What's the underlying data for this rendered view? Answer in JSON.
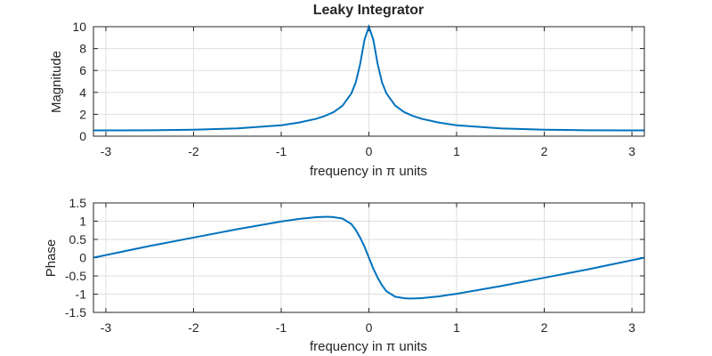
{
  "chart_data": [
    {
      "type": "line",
      "title": "Leaky Integrator",
      "xlabel": "frequency in π units",
      "ylabel": "Magnitude",
      "xlim": [
        -3.1416,
        3.1416
      ],
      "ylim": [
        0,
        10
      ],
      "xticks": [
        -3,
        -2,
        -1,
        0,
        1,
        2,
        3
      ],
      "yticks": [
        0,
        2,
        4,
        6,
        8,
        10
      ],
      "grid": true,
      "series": [
        {
          "name": "",
          "x": [
            -3.1416,
            -3.0,
            -2.5,
            -2.0,
            -1.5,
            -1.0,
            -0.8,
            -0.6,
            -0.5,
            -0.4,
            -0.3,
            -0.2,
            -0.15,
            -0.1,
            -0.05,
            0.0,
            0.05,
            0.1,
            0.15,
            0.2,
            0.3,
            0.4,
            0.5,
            0.6,
            0.8,
            1.0,
            1.5,
            2.0,
            2.5,
            3.0,
            3.1416
          ],
          "y": [
            0.526,
            0.527,
            0.542,
            0.59,
            0.71,
            1.0,
            1.24,
            1.59,
            1.85,
            2.21,
            2.79,
            3.91,
            4.9,
            6.58,
            8.82,
            10.0,
            8.82,
            6.58,
            4.9,
            3.91,
            2.79,
            2.21,
            1.85,
            1.59,
            1.24,
            1.0,
            0.71,
            0.59,
            0.542,
            0.527,
            0.526
          ]
        }
      ]
    },
    {
      "type": "line",
      "title": "",
      "xlabel": "frequency in π units",
      "ylabel": "Phase",
      "xlim": [
        -3.1416,
        3.1416
      ],
      "ylim": [
        -1.5,
        1.5
      ],
      "xticks": [
        -3,
        -2,
        -1,
        0,
        1,
        2,
        3
      ],
      "yticks": [
        -1.5,
        -1,
        -0.5,
        0,
        0.5,
        1,
        1.5
      ],
      "grid": true,
      "series": [
        {
          "name": "",
          "x": [
            -3.1416,
            -3.0,
            -2.5,
            -2.0,
            -1.5,
            -1.0,
            -0.8,
            -0.6,
            -0.5,
            -0.45,
            -0.4,
            -0.3,
            -0.2,
            -0.15,
            -0.1,
            -0.05,
            0.0,
            0.05,
            0.1,
            0.15,
            0.2,
            0.3,
            0.4,
            0.45,
            0.5,
            0.6,
            0.8,
            1.0,
            1.5,
            2.0,
            2.5,
            3.0,
            3.1416
          ],
          "y": [
            0.0,
            0.07,
            0.32,
            0.55,
            0.78,
            0.99,
            1.06,
            1.11,
            1.12,
            1.12,
            1.11,
            1.07,
            0.92,
            0.76,
            0.55,
            0.3,
            0.0,
            -0.3,
            -0.55,
            -0.76,
            -0.92,
            -1.07,
            -1.11,
            -1.12,
            -1.12,
            -1.11,
            -1.06,
            -0.99,
            -0.78,
            -0.55,
            -0.32,
            -0.07,
            0.0
          ]
        }
      ]
    }
  ]
}
